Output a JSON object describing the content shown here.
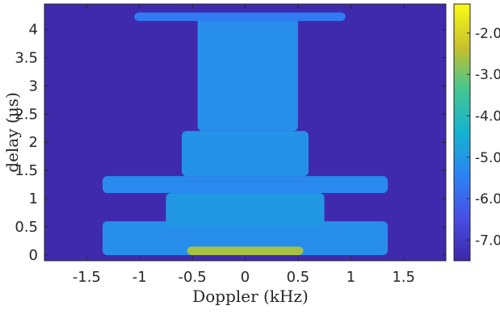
{
  "chart_data": {
    "type": "heatmap",
    "title": "",
    "xlabel": "Doppler (kHz)",
    "ylabel": "delay (μs)",
    "xlim": [
      -1.9,
      1.9
    ],
    "ylim": [
      -0.1,
      4.45
    ],
    "x_ticks": [
      -1.5,
      -1,
      -0.5,
      0,
      0.5,
      1,
      1.5
    ],
    "x_tick_labels": [
      "-1.5",
      "-1",
      "-0.5",
      "0",
      "0.5",
      "1",
      "1.5"
    ],
    "y_ticks": [
      0,
      0.5,
      1,
      1.5,
      2,
      2.5,
      3,
      3.5,
      4
    ],
    "y_tick_labels": [
      "0",
      "0.5",
      "1",
      "1.5",
      "2",
      "2.5",
      "3",
      "3.5",
      "4"
    ],
    "colorbar": {
      "colormap": "parula",
      "range": [
        -7.5,
        -1.3
      ],
      "ticks": [
        -7,
        -6,
        -5,
        -4,
        -3,
        -2
      ],
      "tick_labels": [
        "-7.0",
        "-6.0",
        "-5.0",
        "-4.0",
        "-3.0",
        "-2.0"
      ]
    },
    "background_value": -7.4,
    "regions": [
      {
        "x": [
          -1.35,
          1.35
        ],
        "y": [
          0.0,
          0.6
        ],
        "value": -5.2
      },
      {
        "x": [
          -0.55,
          0.55
        ],
        "y": [
          0.0,
          0.15
        ],
        "value": -2.6
      },
      {
        "x": [
          -1.35,
          1.35
        ],
        "y": [
          1.1,
          1.4
        ],
        "value": -5.3
      },
      {
        "x": [
          -0.75,
          0.75
        ],
        "y": [
          0.5,
          1.1
        ],
        "value": -5.0
      },
      {
        "x": [
          -0.6,
          0.6
        ],
        "y": [
          1.4,
          2.2
        ],
        "value": -5.1
      },
      {
        "x": [
          -0.45,
          0.5
        ],
        "y": [
          2.2,
          4.3
        ],
        "value": -5.2
      },
      {
        "x": [
          -1.05,
          0.95
        ],
        "y": [
          4.15,
          4.3
        ],
        "value": -5.6
      }
    ]
  }
}
